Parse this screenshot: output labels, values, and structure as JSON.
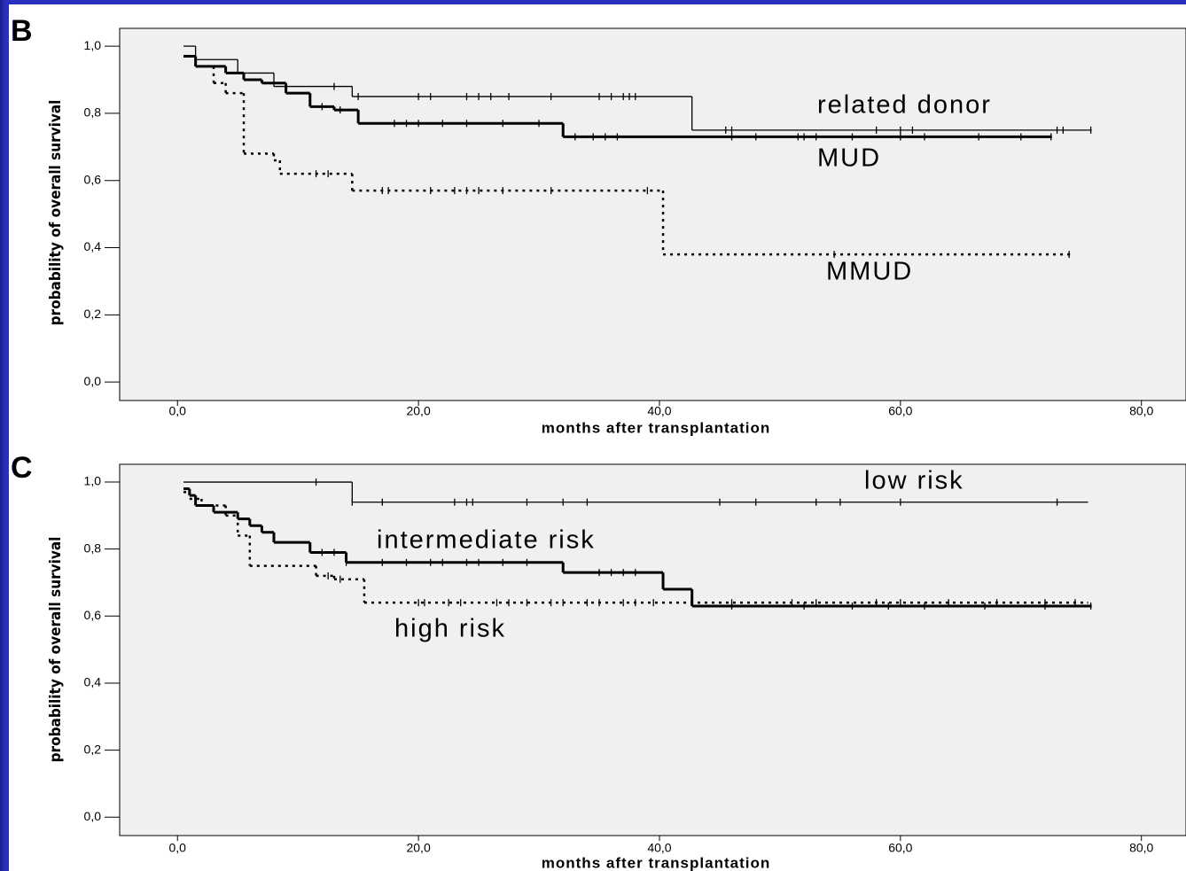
{
  "chart_data": [
    {
      "type": "step",
      "panel": "B",
      "xlabel": "months after transplantation",
      "ylabel": "probability of overall survival",
      "xlim": [
        -4.8,
        83.7
      ],
      "ylim": [
        -0.055,
        1.053
      ],
      "xticks": [
        {
          "value": 0,
          "label": "0,0"
        },
        {
          "value": 20,
          "label": "20,0"
        },
        {
          "value": 40,
          "label": "40,0"
        },
        {
          "value": 60,
          "label": "60,0"
        },
        {
          "value": 80,
          "label": "80,0"
        }
      ],
      "yticks": [
        {
          "value": 0,
          "label": "0,0"
        },
        {
          "value": 0.2,
          "label": "0,2"
        },
        {
          "value": 0.4,
          "label": "0,4"
        },
        {
          "value": 0.6,
          "label": "0,6"
        },
        {
          "value": 0.8,
          "label": "0,8"
        },
        {
          "value": 1.0,
          "label": "1,0"
        }
      ],
      "series": [
        {
          "name": "related donor",
          "color": "#000000",
          "style": "thin",
          "x": [
            0.5,
            1.5,
            5,
            8,
            14.5,
            42.7,
            75.8
          ],
          "values": [
            1.0,
            0.96,
            0.92,
            0.88,
            0.85,
            0.75,
            0.75
          ],
          "censored": [
            13,
            15,
            20,
            21,
            24,
            25,
            26,
            27.5,
            31,
            35,
            36,
            37,
            37.5,
            38,
            45.5,
            46,
            58,
            60,
            61,
            73,
            73.5,
            75.8
          ]
        },
        {
          "name": "MUD",
          "color": "#000000",
          "style": "thick",
          "x": [
            0.5,
            1.5,
            4,
            5.5,
            7,
            9,
            11,
            13,
            15,
            32,
            72.5
          ],
          "values": [
            0.97,
            0.94,
            0.92,
            0.9,
            0.89,
            0.86,
            0.82,
            0.81,
            0.77,
            0.73,
            0.73
          ],
          "censored": [
            12,
            13.5,
            18,
            19,
            20,
            22,
            24,
            27,
            30,
            33,
            34.5,
            35.5,
            36.5,
            46,
            48,
            51.5,
            52,
            53,
            56,
            60,
            62,
            66.5,
            70,
            72.5
          ]
        },
        {
          "name": "MMUD",
          "color": "#000000",
          "style": "dotted",
          "x": [
            0.5,
            1.5,
            3,
            4,
            5.5,
            8,
            8.5,
            14.5,
            40.3,
            74
          ],
          "values": [
            0.97,
            0.94,
            0.89,
            0.86,
            0.68,
            0.66,
            0.62,
            0.57,
            0.38,
            0.38
          ],
          "censored": [
            11.5,
            12.5,
            17,
            17.5,
            21,
            23,
            24,
            25,
            27,
            31,
            39,
            54.5,
            74
          ]
        }
      ]
    },
    {
      "type": "step",
      "panel": "C",
      "xlabel": "months after transplantation",
      "ylabel": "probability of overall survival",
      "xlim": [
        -4.8,
        83.7
      ],
      "ylim": [
        -0.055,
        1.053
      ],
      "xticks": [
        {
          "value": 0,
          "label": "0,0"
        },
        {
          "value": 20,
          "label": "20,0"
        },
        {
          "value": 40,
          "label": "40,0"
        },
        {
          "value": 60,
          "label": "60,0"
        },
        {
          "value": 80,
          "label": "80,0"
        }
      ],
      "yticks": [
        {
          "value": 0,
          "label": "0,0"
        },
        {
          "value": 0.2,
          "label": "0,2"
        },
        {
          "value": 0.4,
          "label": "0,4"
        },
        {
          "value": 0.6,
          "label": "0,6"
        },
        {
          "value": 0.8,
          "label": "0,8"
        },
        {
          "value": 1.0,
          "label": "1,0"
        }
      ],
      "series": [
        {
          "name": "low risk",
          "color": "#000000",
          "style": "thin",
          "x": [
            0.5,
            14.5,
            75.5
          ],
          "values": [
            1.0,
            0.94,
            0.94
          ],
          "censored": [
            11.5,
            14.5,
            17,
            23,
            24,
            24.5,
            29,
            32,
            34,
            45,
            48,
            53,
            55,
            60,
            73
          ]
        },
        {
          "name": "intermediate risk",
          "color": "#000000",
          "style": "thick",
          "x": [
            0.5,
            1,
            1.5,
            3,
            5,
            6,
            7,
            8,
            11,
            14,
            32,
            40.3,
            42.7,
            75.8
          ],
          "values": [
            0.98,
            0.96,
            0.93,
            0.91,
            0.89,
            0.87,
            0.85,
            0.82,
            0.79,
            0.76,
            0.73,
            0.68,
            0.63,
            0.63
          ],
          "censored": [
            12,
            13,
            14,
            17,
            19,
            21,
            22,
            24,
            25,
            27,
            29,
            35,
            36,
            37,
            38,
            46,
            52,
            56,
            59,
            62,
            67,
            72,
            75.8
          ]
        },
        {
          "name": "high risk",
          "color": "#000000",
          "style": "dotted",
          "x": [
            0.5,
            1,
            2,
            4,
            5,
            6,
            11.5,
            13,
            15.5,
            75.5
          ],
          "values": [
            0.97,
            0.95,
            0.93,
            0.9,
            0.84,
            0.75,
            0.72,
            0.71,
            0.64,
            0.64
          ],
          "censored": [
            12.5,
            13.5,
            20,
            20.5,
            22.5,
            23.5,
            26.5,
            27.5,
            29,
            31,
            32,
            34,
            35,
            37,
            38,
            39.5,
            46,
            51,
            53,
            58,
            60,
            64,
            68,
            72,
            74.5
          ]
        }
      ]
    }
  ]
}
